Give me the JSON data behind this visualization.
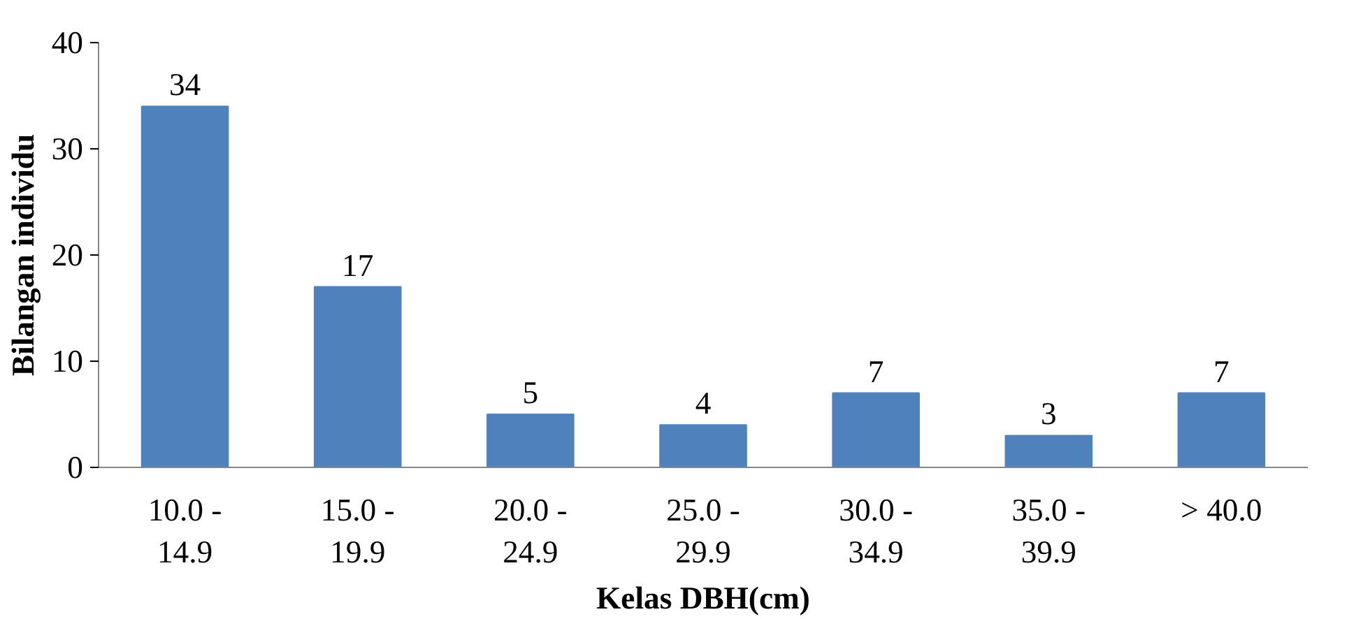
{
  "chart_data": {
    "type": "bar",
    "xlabel": "Kelas DBH(cm)",
    "ylabel": "Bilangan individu",
    "categories": [
      "10.0 -\n14.9",
      "15.0 -\n19.9",
      "20.0 -\n24.9",
      "25.0 -\n29.9",
      "30.0 -\n34.9",
      "35.0 -\n39.9",
      "> 40.0"
    ],
    "values": [
      34,
      17,
      5,
      4,
      7,
      3,
      7
    ],
    "color": "#4f81bd",
    "ylim": [
      0,
      40
    ],
    "yticks": [
      0,
      10,
      20,
      30,
      40
    ],
    "data_labels": true,
    "grid": false
  }
}
